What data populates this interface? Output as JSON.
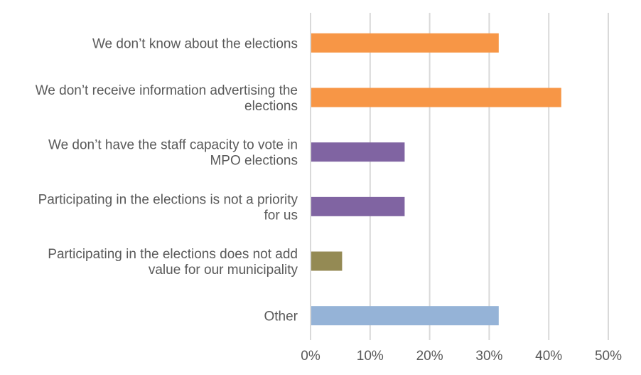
{
  "chart_data": {
    "type": "bar",
    "orientation": "horizontal",
    "title": "",
    "xlabel": "",
    "ylabel": "",
    "xlim": [
      0,
      50
    ],
    "x_ticks": [
      "0%",
      "10%",
      "20%",
      "30%",
      "40%",
      "50%"
    ],
    "grid": true,
    "legend": "none",
    "categories": [
      [
        "We don’t know about the elections"
      ],
      [
        "We don’t receive information advertising the",
        "elections"
      ],
      [
        "We don’t have the staff capacity to vote in",
        "MPO elections"
      ],
      [
        "Participating in the elections is not a priority",
        "for us"
      ],
      [
        "Participating in the elections does not add",
        "value for our municipality"
      ],
      [
        "Other"
      ]
    ],
    "values": [
      31.6,
      42.1,
      15.8,
      15.8,
      5.3,
      31.6
    ],
    "colors": [
      "#f79646",
      "#f79646",
      "#8064a2",
      "#8064a2",
      "#948a54",
      "#95b3d7"
    ],
    "unit": "%"
  }
}
